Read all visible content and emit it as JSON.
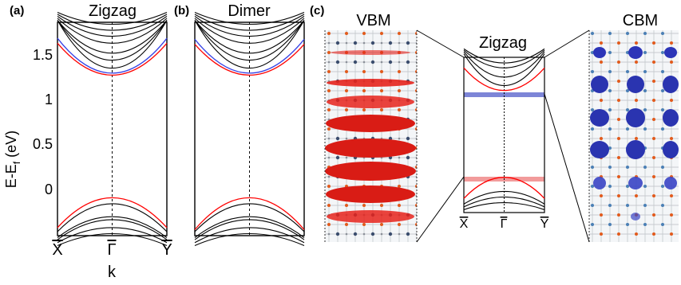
{
  "figure": {
    "panels": [
      {
        "letter": "(a)",
        "title": "Zigzag"
      },
      {
        "letter": "(b)",
        "title": "Dimer"
      },
      {
        "letter": "(c)",
        "title": "Zigzag",
        "left_title": "VBM",
        "right_title": "CBM"
      }
    ],
    "ylabel": "E-E",
    "ylabel_sub": "f",
    "ylabel_unit": " (eV)",
    "xlabel": "k",
    "kpoints": [
      "X",
      "Γ",
      "Y"
    ],
    "yticks": [
      "1.5",
      "1",
      "0.5",
      "0"
    ],
    "colors": {
      "vbm": "#e0201d",
      "cbm": "#2a3aa8",
      "frame": "#000000",
      "cband": "#3340e6",
      "vband": "#ff0000"
    }
  },
  "chart_data": [
    {
      "type": "line",
      "title": "Zigzag",
      "xlabel": "k",
      "ylabel": "E-Ef (eV)",
      "ylim": [
        -0.38,
        1.76
      ],
      "x": [
        "X",
        "Γ",
        "Y"
      ],
      "series": [
        {
          "values": [
            -0.3,
            0.0,
            -0.3
          ]
        },
        {
          "values": [
            1.55,
            1.23,
            1.55
          ]
        },
        {
          "values": [
            1.6,
            1.25,
            1.6
          ]
        }
      ]
    },
    {
      "type": "line",
      "title": "Dimer",
      "ylim": [
        -0.38,
        1.76
      ],
      "x": [
        "X",
        "Γ",
        "Y"
      ],
      "series": [
        {
          "values": [
            -0.32,
            0.0,
            -0.32
          ]
        },
        {
          "values": [
            1.54,
            1.23,
            1.54
          ]
        },
        {
          "values": [
            1.59,
            1.25,
            1.59
          ]
        }
      ]
    },
    {
      "type": "line",
      "title": "Zigzag",
      "x": [
        "X",
        "Γ",
        "Y"
      ],
      "series": [
        {
          "values": [
            -0.3,
            0.0,
            -0.3
          ]
        },
        {
          "values": [
            1.55,
            1.23,
            1.55
          ]
        }
      ]
    }
  ]
}
